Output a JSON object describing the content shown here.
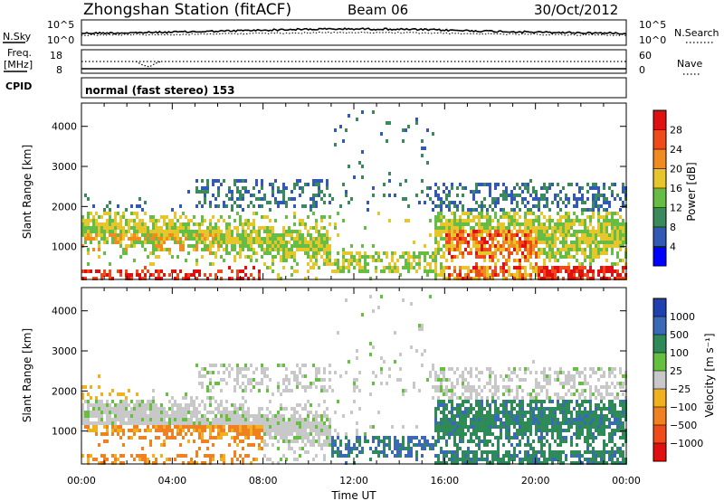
{
  "header": {
    "title": "Zhongshan Station (fitACF)",
    "beam": "Beam 06",
    "date": "30/Oct/2012"
  },
  "top_panels": {
    "nsky_label": "N.Sky",
    "nsky_ticks": [
      "10^5",
      "10^0"
    ],
    "nsearch_label": "N.Search",
    "nsearch_ticks": [
      "10^5",
      "10^0"
    ],
    "freq_label_1": "Freq.",
    "freq_label_2": "[MHz]",
    "freq_ticks": [
      "18",
      "8"
    ],
    "nave_label": "Nave",
    "nave_ticks": [
      "60",
      "0"
    ],
    "cpid_label": "CPID",
    "cpid_text": "normal (fast stereo) 153"
  },
  "chart_data": [
    {
      "type": "heatmap",
      "name": "power",
      "ylabel": "Slant Range [km]",
      "yticks": [
        "1000",
        "2000",
        "3000",
        "4000"
      ],
      "ylim": [
        180,
        4580
      ],
      "colorbar_label": "Power [dB]",
      "colorbar_ticks": [
        "4",
        "8",
        "12",
        "16",
        "20",
        "24",
        "28"
      ],
      "colors": [
        "#0000ff",
        "#3159b5",
        "#3a8a5c",
        "#66bd45",
        "#e6c62a",
        "#f08c1f",
        "#f04a1a",
        "#e01010"
      ]
    },
    {
      "type": "heatmap",
      "name": "velocity",
      "ylabel": "Slant Range [km]",
      "yticks": [
        "1000",
        "2000",
        "3000",
        "4000"
      ],
      "ylim": [
        180,
        4580
      ],
      "colorbar_label": "Velocity [m s⁻¹]",
      "colorbar_ticks": [
        "1000",
        "500",
        "100",
        "25",
        "−25",
        "−100",
        "−500",
        "−1000"
      ],
      "colors": [
        "#2040b0",
        "#3a6ab5",
        "#2e8b57",
        "#66c040",
        "#c8c8c8",
        "#f0b020",
        "#f08020",
        "#f04a1a",
        "#e01010"
      ]
    }
  ],
  "x_axis": {
    "ticks": [
      "00:00",
      "04:00",
      "08:00",
      "12:00",
      "16:00",
      "20:00",
      "00:00"
    ],
    "label": "Time UT"
  }
}
